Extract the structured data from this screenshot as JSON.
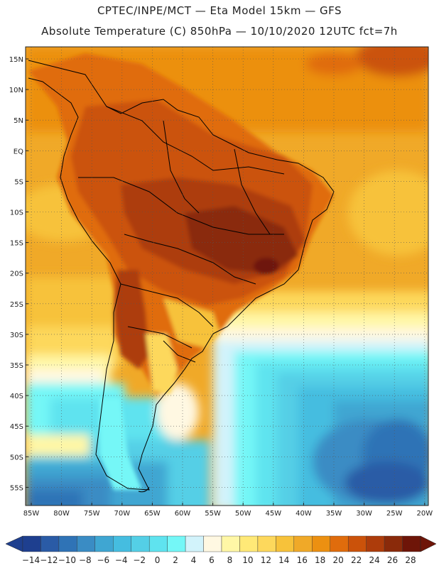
{
  "title_line1": "CPTEC/INPE/MCT —  Eta Model 15km — GFS",
  "title_line2": "Absolute Temperature (C) 850hPa — 10/10/2020 12UTC fct=7h",
  "lat_labels": [
    "15N",
    "10N",
    "5N",
    "EQ",
    "5S",
    "10S",
    "15S",
    "20S",
    "25S",
    "30S",
    "35S",
    "40S",
    "45S",
    "50S",
    "55S"
  ],
  "lon_labels": [
    "85W",
    "80W",
    "75W",
    "70W",
    "65W",
    "60W",
    "55W",
    "50W",
    "45W",
    "40W",
    "35W",
    "30W",
    "25W",
    "20W"
  ],
  "colorbar": {
    "labels": [
      "-14",
      "-12",
      "-10",
      "-8",
      "-6",
      "-4",
      "-2",
      "0",
      "2",
      "4",
      "6",
      "8",
      "10",
      "12",
      "14",
      "16",
      "18",
      "20",
      "22",
      "24",
      "26",
      "28"
    ],
    "colors": [
      "#1e3f8f",
      "#2a5ba6",
      "#2f73b6",
      "#3a8cc4",
      "#3fa6d2",
      "#45bde0",
      "#54cfe6",
      "#5fe3ef",
      "#74f7f7",
      "#d2f3fb",
      "#fff8e2",
      "#fff7a6",
      "#ffe977",
      "#fdd85c",
      "#f7c23a",
      "#f0a928",
      "#ec9011",
      "#e06c0c",
      "#cb520a",
      "#ad3c0b",
      "#8a2a0a",
      "#6e1508"
    ],
    "under_color": "#1e3f8f",
    "over_color": "#6e1508"
  }
}
